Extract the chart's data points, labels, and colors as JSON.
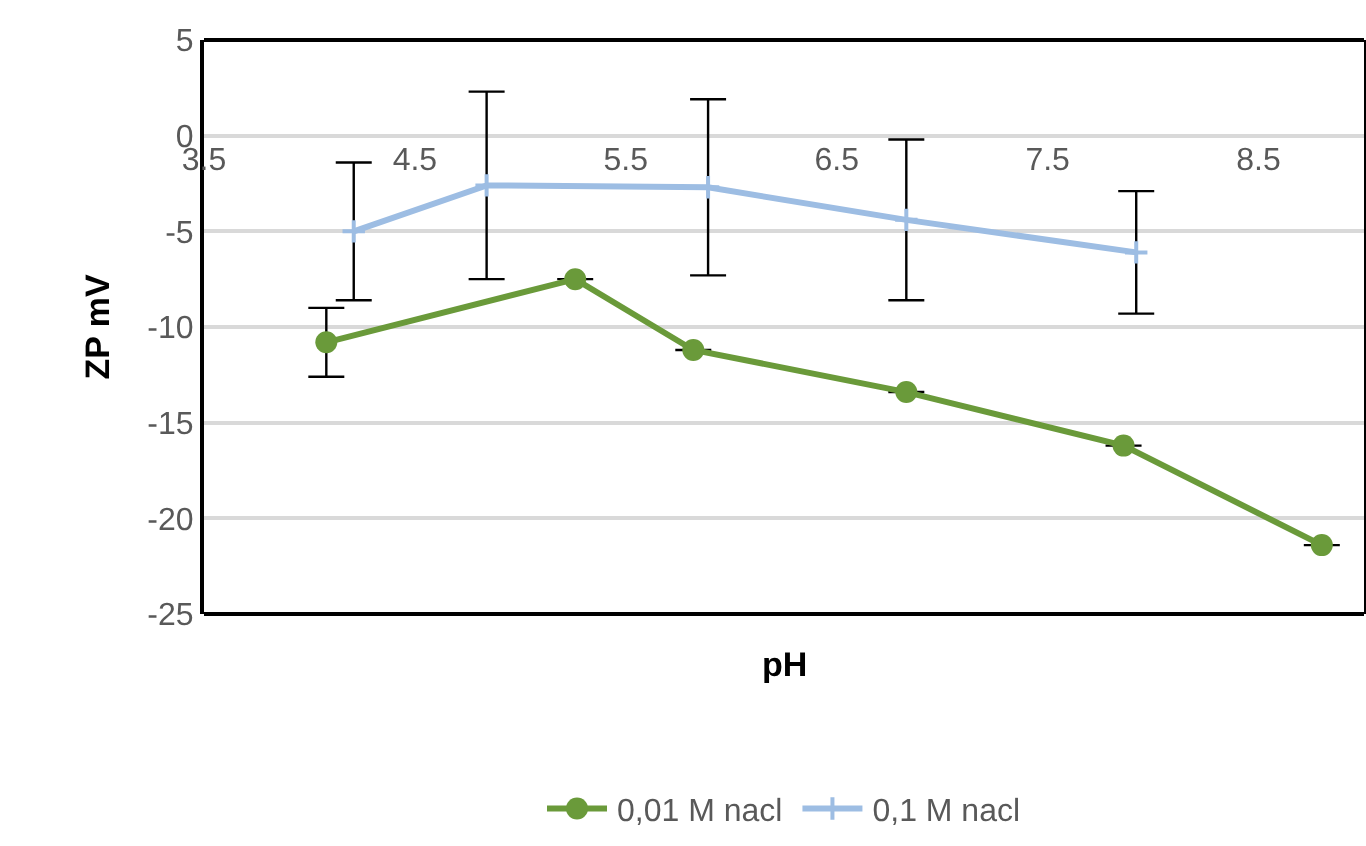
{
  "chart_data": {
    "type": "line",
    "xlabel": "pH",
    "ylabel": "ZP mV",
    "xlim": [
      3.5,
      9
    ],
    "xticks": [
      3.5,
      4.5,
      5.5,
      6.5,
      7.5,
      8.5
    ],
    "ylim": [
      -25,
      5
    ],
    "yticks": [
      -25,
      -20,
      -15,
      -10,
      -5,
      0,
      5
    ],
    "grid": "y",
    "legend": "bottom",
    "series": [
      {
        "name": "0,01 M nacl",
        "marker": "circle",
        "color": "#6a9a3a",
        "x": [
          4.08,
          5.26,
          5.82,
          6.83,
          7.86,
          8.8
        ],
        "values": [
          -10.8,
          -7.5,
          -11.2,
          -13.4,
          -16.2,
          -21.4
        ],
        "errors": [
          1.8,
          null,
          null,
          null,
          null,
          null
        ]
      },
      {
        "name": "0,1 M nacl",
        "marker": "cross",
        "color": "#9dbde3",
        "x": [
          4.21,
          4.84,
          5.89,
          6.83,
          7.92
        ],
        "values": [
          -5.0,
          -2.6,
          -2.7,
          -4.4,
          -6.1
        ],
        "errors": [
          3.6,
          4.9,
          4.6,
          4.2,
          3.2
        ]
      }
    ]
  }
}
